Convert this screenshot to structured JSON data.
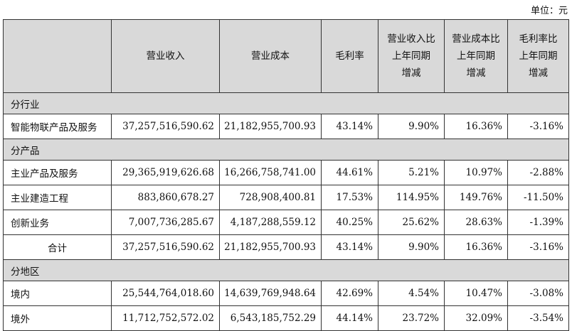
{
  "unit_label": "单位：元",
  "headers": {
    "col1": "",
    "revenue": "营业收入",
    "cost": "营业成本",
    "margin": "毛利率",
    "rev_change": [
      "营业收入比",
      "上年同期",
      "增减"
    ],
    "cost_change": [
      "营业成本比",
      "上年同期",
      "增减"
    ],
    "margin_change": [
      "毛利率比",
      "上年同期",
      "增减"
    ]
  },
  "sections": {
    "industry": "分行业",
    "product": "分产品",
    "region": "分地区"
  },
  "rows": {
    "iot": [
      "智能物联产品及服务",
      "37,257,516,590.62",
      "21,182,955,700.93",
      "43.14%",
      "9.90%",
      "16.36%",
      "-3.16%"
    ],
    "main_products": [
      "主业产品及服务",
      "29,365,919,626.68",
      "16,266,758,741.00",
      "44.61%",
      "5.21%",
      "10.97%",
      "-2.88%"
    ],
    "construction": [
      "主业建造工程",
      "883,860,678.27",
      "728,908,400.81",
      "17.53%",
      "114.95%",
      "149.76%",
      "-11.50%"
    ],
    "innovation": [
      "创新业务",
      "7,007,736,285.67",
      "4,187,288,559.12",
      "40.25%",
      "25.62%",
      "28.63%",
      "-1.39%"
    ],
    "total": [
      "合计",
      "37,257,516,590.62",
      "21,182,955,700.93",
      "43.14%",
      "9.90%",
      "16.36%",
      "-3.16%"
    ],
    "domestic": [
      "境内",
      "25,544,764,018.60",
      "14,639,769,948.64",
      "42.69%",
      "4.54%",
      "10.47%",
      "-3.08%"
    ],
    "overseas": [
      "境外",
      "11,712,752,572.02",
      "6,543,185,752.29",
      "44.14%",
      "23.72%",
      "32.09%",
      "-3.54%"
    ]
  }
}
